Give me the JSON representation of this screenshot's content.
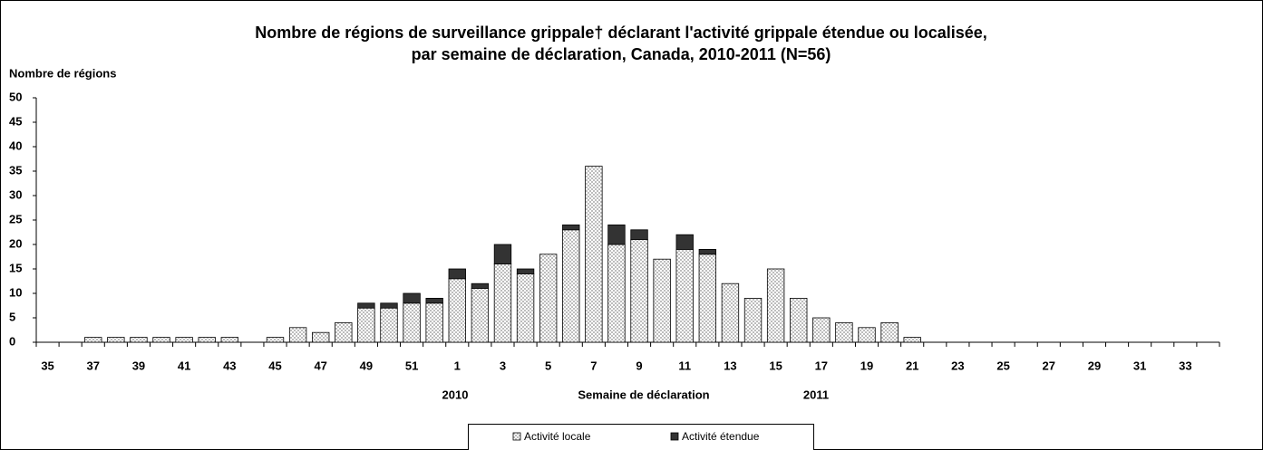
{
  "chart_data": {
    "type": "stacked_bar",
    "title": [
      "Nombre de régions de surveillance grippale† déclarant l'activité grippale étendue ou localisée,",
      "par semaine de déclaration, Canada, 2010-2011 (N=56)"
    ],
    "ylabel": "Nombre de régions",
    "xlabel": "Semaine de déclaration",
    "year_labels": [
      "2010",
      "2011"
    ],
    "categories": [
      "35",
      null,
      "37",
      null,
      "39",
      null,
      "41",
      null,
      "43",
      null,
      "45",
      null,
      "47",
      null,
      "49",
      null,
      "51",
      null,
      "1",
      null,
      "3",
      null,
      "5",
      null,
      "7",
      null,
      "9",
      null,
      "11",
      null,
      "13",
      null,
      "15",
      null,
      "17",
      null,
      "19",
      null,
      "21",
      null,
      "23",
      null,
      "25",
      null,
      "27",
      null,
      "29",
      null,
      "31",
      null,
      "33",
      null
    ],
    "series": [
      {
        "name": "Activité locale",
        "color": "#bdbdbd",
        "values": [
          0,
          0,
          1,
          1,
          1,
          1,
          1,
          1,
          1,
          0,
          1,
          3,
          2,
          4,
          7,
          7,
          8,
          8,
          13,
          11,
          16,
          14,
          18,
          23,
          36,
          20,
          21,
          17,
          19,
          18,
          12,
          9,
          15,
          9,
          5,
          4,
          3,
          4,
          1,
          0,
          0,
          0,
          0,
          0,
          0,
          0,
          0,
          0,
          0,
          0,
          0,
          0
        ]
      },
      {
        "name": "Activité étendue",
        "color": "#333333",
        "values": [
          0,
          0,
          0,
          0,
          0,
          0,
          0,
          0,
          0,
          0,
          0,
          0,
          0,
          0,
          1,
          1,
          2,
          1,
          2,
          1,
          4,
          1,
          0,
          1,
          0,
          4,
          2,
          0,
          3,
          1,
          0,
          0,
          0,
          0,
          0,
          0,
          0,
          0,
          0,
          0,
          0,
          0,
          0,
          0,
          0,
          0,
          0,
          0,
          0,
          0,
          0,
          0
        ]
      }
    ],
    "ylim": [
      0,
      50
    ],
    "yticks": [
      0,
      5,
      10,
      15,
      20,
      25,
      30,
      35,
      40,
      45,
      50
    ],
    "grid": false
  }
}
